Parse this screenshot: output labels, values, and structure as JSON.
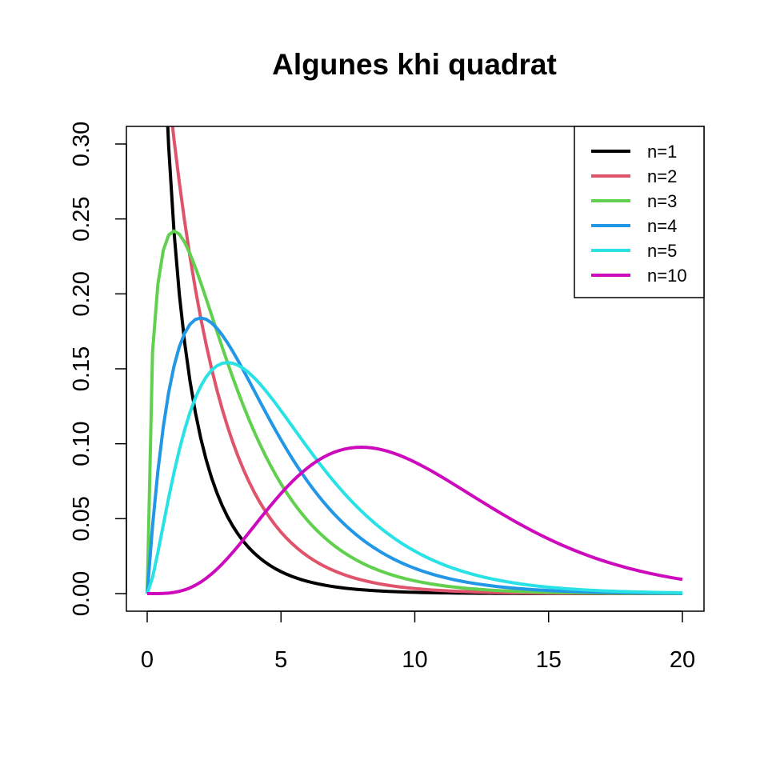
{
  "chart_data": {
    "type": "line",
    "title": "Algunes khi quadrat",
    "xlabel": "",
    "ylabel": "",
    "xlim": [
      0,
      20
    ],
    "ylim": [
      0,
      0.3
    ],
    "x_ticks": [
      "0",
      "5",
      "10",
      "15",
      "20"
    ],
    "y_ticks": [
      "0.00",
      "0.05",
      "0.10",
      "0.15",
      "0.20",
      "0.25",
      "0.30"
    ],
    "grid": false,
    "legend_position": "top-right",
    "x_samples": "0 to 20, step 0.2",
    "series": [
      {
        "name": "n=1",
        "df": 1,
        "color": "#000000"
      },
      {
        "name": "n=2",
        "df": 2,
        "color": "#DF536B"
      },
      {
        "name": "n=3",
        "df": 3,
        "color": "#61D04F"
      },
      {
        "name": "n=4",
        "df": 4,
        "color": "#2297E6"
      },
      {
        "name": "n=5",
        "df": 5,
        "color": "#28E2E5"
      },
      {
        "name": "n=10",
        "df": 10,
        "color": "#CD0BBC"
      }
    ]
  }
}
